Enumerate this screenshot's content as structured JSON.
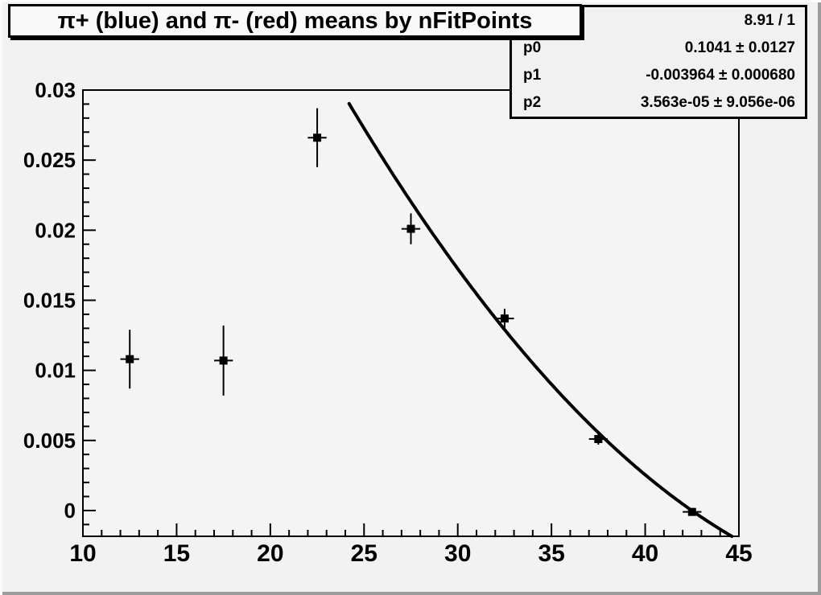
{
  "window": {
    "canvas_bg": "#f2f2f2",
    "frame_bg": "#f4f4f4",
    "ink": "#000000"
  },
  "title": {
    "text": "π+ (blue) and π- (red) means by nFitPoints"
  },
  "stats": {
    "chi2": "8.91 / 1",
    "rows": [
      {
        "label": "p0",
        "value": "0.1041 ± 0.0127"
      },
      {
        "label": "p1",
        "value": "-0.003964 ± 0.000680"
      },
      {
        "label": "p2",
        "value": "3.563e-05 ± 9.056e-06"
      }
    ]
  },
  "chart_data": {
    "type": "scatter",
    "title": "π+ (blue) and π- (red) means by nFitPoints",
    "xlabel": "",
    "ylabel": "",
    "xlim": [
      10,
      45
    ],
    "ylim": [
      -0.00184,
      0.03
    ],
    "grid": false,
    "x_major_ticks": [
      10,
      15,
      20,
      25,
      30,
      35,
      40,
      45
    ],
    "x_minor_tick_step": 1,
    "y_major_ticks": [
      0,
      0.005,
      0.01,
      0.015,
      0.02,
      0.025,
      0.03
    ],
    "y_major_tick_labels": [
      "0",
      "0.005",
      "0.01",
      "0.015",
      "0.02",
      "0.025",
      "0.03"
    ],
    "y_minor_tick_step": 0.001,
    "series": [
      {
        "name": "means by nFitPoints",
        "marker": "filled-square",
        "color": "#000000",
        "points": [
          {
            "x": 12.5,
            "y": 0.0108,
            "ex": 0.5,
            "ey": 0.0021
          },
          {
            "x": 17.5,
            "y": 0.0107,
            "ex": 0.5,
            "ey": 0.0025
          },
          {
            "x": 22.5,
            "y": 0.0266,
            "ex": 0.5,
            "ey": 0.0021
          },
          {
            "x": 27.5,
            "y": 0.0201,
            "ex": 0.5,
            "ey": 0.0011
          },
          {
            "x": 32.5,
            "y": 0.0137,
            "ex": 0.5,
            "ey": 0.0007
          },
          {
            "x": 37.5,
            "y": 0.0051,
            "ex": 0.5,
            "ey": 0.0004
          },
          {
            "x": 42.5,
            "y": -0.0001,
            "ex": 0.5,
            "ey": 0.0002
          }
        ]
      }
    ],
    "fit_curve": {
      "type": "pol2",
      "p0": 0.1041,
      "p1": -0.003964,
      "p2": 3.563e-05,
      "x_start": 24.2,
      "color": "#000000"
    }
  }
}
